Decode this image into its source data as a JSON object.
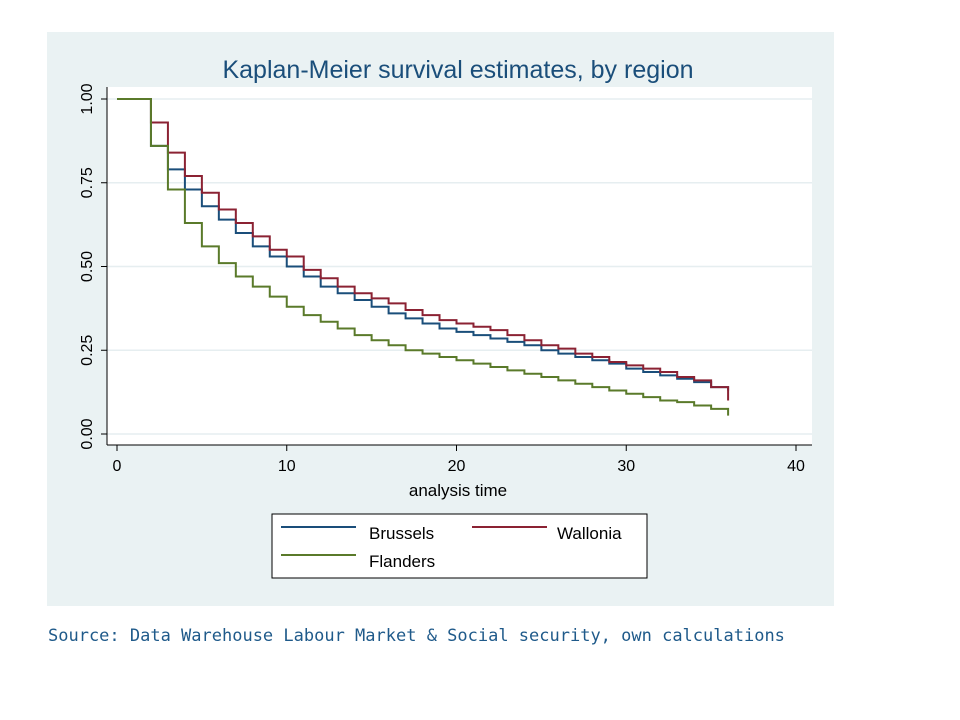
{
  "chart_data": {
    "type": "line",
    "step": true,
    "title": "Kaplan-Meier survival estimates, by region",
    "xlabel": "analysis time",
    "ylabel": "",
    "xlim": [
      0,
      40
    ],
    "ylim": [
      0,
      1
    ],
    "xticks": [
      "0",
      "10",
      "20",
      "30",
      "40"
    ],
    "xtick_values": [
      0,
      10,
      20,
      30,
      40
    ],
    "yticks": [
      "0.00",
      "0.25",
      "0.50",
      "0.75",
      "1.00"
    ],
    "ytick_values": [
      0,
      0.25,
      0.5,
      0.75,
      1.0
    ],
    "grid": "horizontal",
    "legend_position": "bottom",
    "x": [
      0,
      1,
      2,
      3,
      4,
      5,
      6,
      7,
      8,
      9,
      10,
      11,
      12,
      13,
      14,
      15,
      16,
      17,
      18,
      19,
      20,
      21,
      22,
      23,
      24,
      25,
      26,
      27,
      28,
      29,
      30,
      31,
      32,
      33,
      34,
      35,
      36
    ],
    "series": [
      {
        "name": "Brussels",
        "color": "#1a4e7a",
        "values": [
          1.0,
          1.0,
          0.86,
          0.79,
          0.73,
          0.68,
          0.64,
          0.6,
          0.56,
          0.53,
          0.5,
          0.47,
          0.44,
          0.42,
          0.4,
          0.38,
          0.36,
          0.345,
          0.33,
          0.315,
          0.305,
          0.295,
          0.285,
          0.275,
          0.265,
          0.25,
          0.24,
          0.23,
          0.22,
          0.21,
          0.195,
          0.185,
          0.175,
          0.165,
          0.155,
          0.14,
          0.13
        ]
      },
      {
        "name": "Wallonia",
        "color": "#8b2233",
        "values": [
          1.0,
          1.0,
          0.93,
          0.84,
          0.77,
          0.72,
          0.67,
          0.63,
          0.59,
          0.55,
          0.53,
          0.49,
          0.465,
          0.44,
          0.42,
          0.405,
          0.39,
          0.37,
          0.355,
          0.34,
          0.33,
          0.32,
          0.31,
          0.295,
          0.28,
          0.265,
          0.255,
          0.24,
          0.23,
          0.215,
          0.205,
          0.195,
          0.185,
          0.17,
          0.16,
          0.14,
          0.1
        ]
      },
      {
        "name": "Flanders",
        "color": "#5a7a2a",
        "values": [
          1.0,
          1.0,
          0.86,
          0.73,
          0.63,
          0.56,
          0.51,
          0.47,
          0.44,
          0.41,
          0.38,
          0.355,
          0.335,
          0.315,
          0.295,
          0.28,
          0.265,
          0.25,
          0.24,
          0.23,
          0.22,
          0.21,
          0.2,
          0.19,
          0.18,
          0.17,
          0.16,
          0.15,
          0.14,
          0.13,
          0.12,
          0.11,
          0.1,
          0.095,
          0.085,
          0.075,
          0.055
        ]
      }
    ]
  },
  "source_note": "Source: Data Warehouse Labour Market & Social security, own calculations"
}
